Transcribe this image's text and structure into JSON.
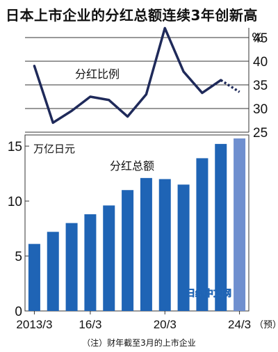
{
  "title": "日本上市企业的分红总额连续3年创新高",
  "footnote": "（注）财年截至3月的上市企业",
  "watermark": "日经中文网",
  "chart_data": [
    {
      "type": "line",
      "label": "分红比例",
      "unit": "%",
      "x": [
        "2013/3",
        "2014/3",
        "2015/3",
        "2016/3",
        "2017/3",
        "2018/3",
        "2019/3",
        "2020/3",
        "2021/3",
        "2022/3",
        "2023/3",
        "2024/3"
      ],
      "values": [
        39.0,
        27.0,
        29.5,
        32.5,
        31.8,
        28.3,
        33.0,
        47.0,
        37.8,
        33.3,
        36.0,
        33.5
      ],
      "forecast_from_index": 10,
      "ylim": [
        25,
        45
      ],
      "yticks": [
        25,
        30,
        35,
        40,
        45
      ],
      "color": "#1f2a5a"
    },
    {
      "type": "bar",
      "label": "分红总额",
      "unit": "万亿日元",
      "categories": [
        "2013/3",
        "2014/3",
        "2015/3",
        "2016/3",
        "2017/3",
        "2018/3",
        "2019/3",
        "2020/3",
        "2021/3",
        "2022/3",
        "2023/3",
        "2024/3"
      ],
      "values": [
        6.1,
        7.2,
        8.0,
        8.8,
        9.6,
        11.0,
        12.1,
        12.0,
        11.5,
        13.9,
        15.2,
        15.7
      ],
      "forecast_index": 11,
      "ylim": [
        0,
        15.7
      ],
      "yticks": [
        0,
        5,
        10,
        15
      ],
      "xtick_labels": [
        {
          "index": 0,
          "text": "2013/3"
        },
        {
          "index": 3,
          "text": "16/3"
        },
        {
          "index": 7,
          "text": "20/3"
        },
        {
          "index": 11,
          "text": "24/3"
        }
      ],
      "forecast_note": "（预）",
      "color": "#1f64b5",
      "forecast_color": "#6f8fcf"
    }
  ]
}
